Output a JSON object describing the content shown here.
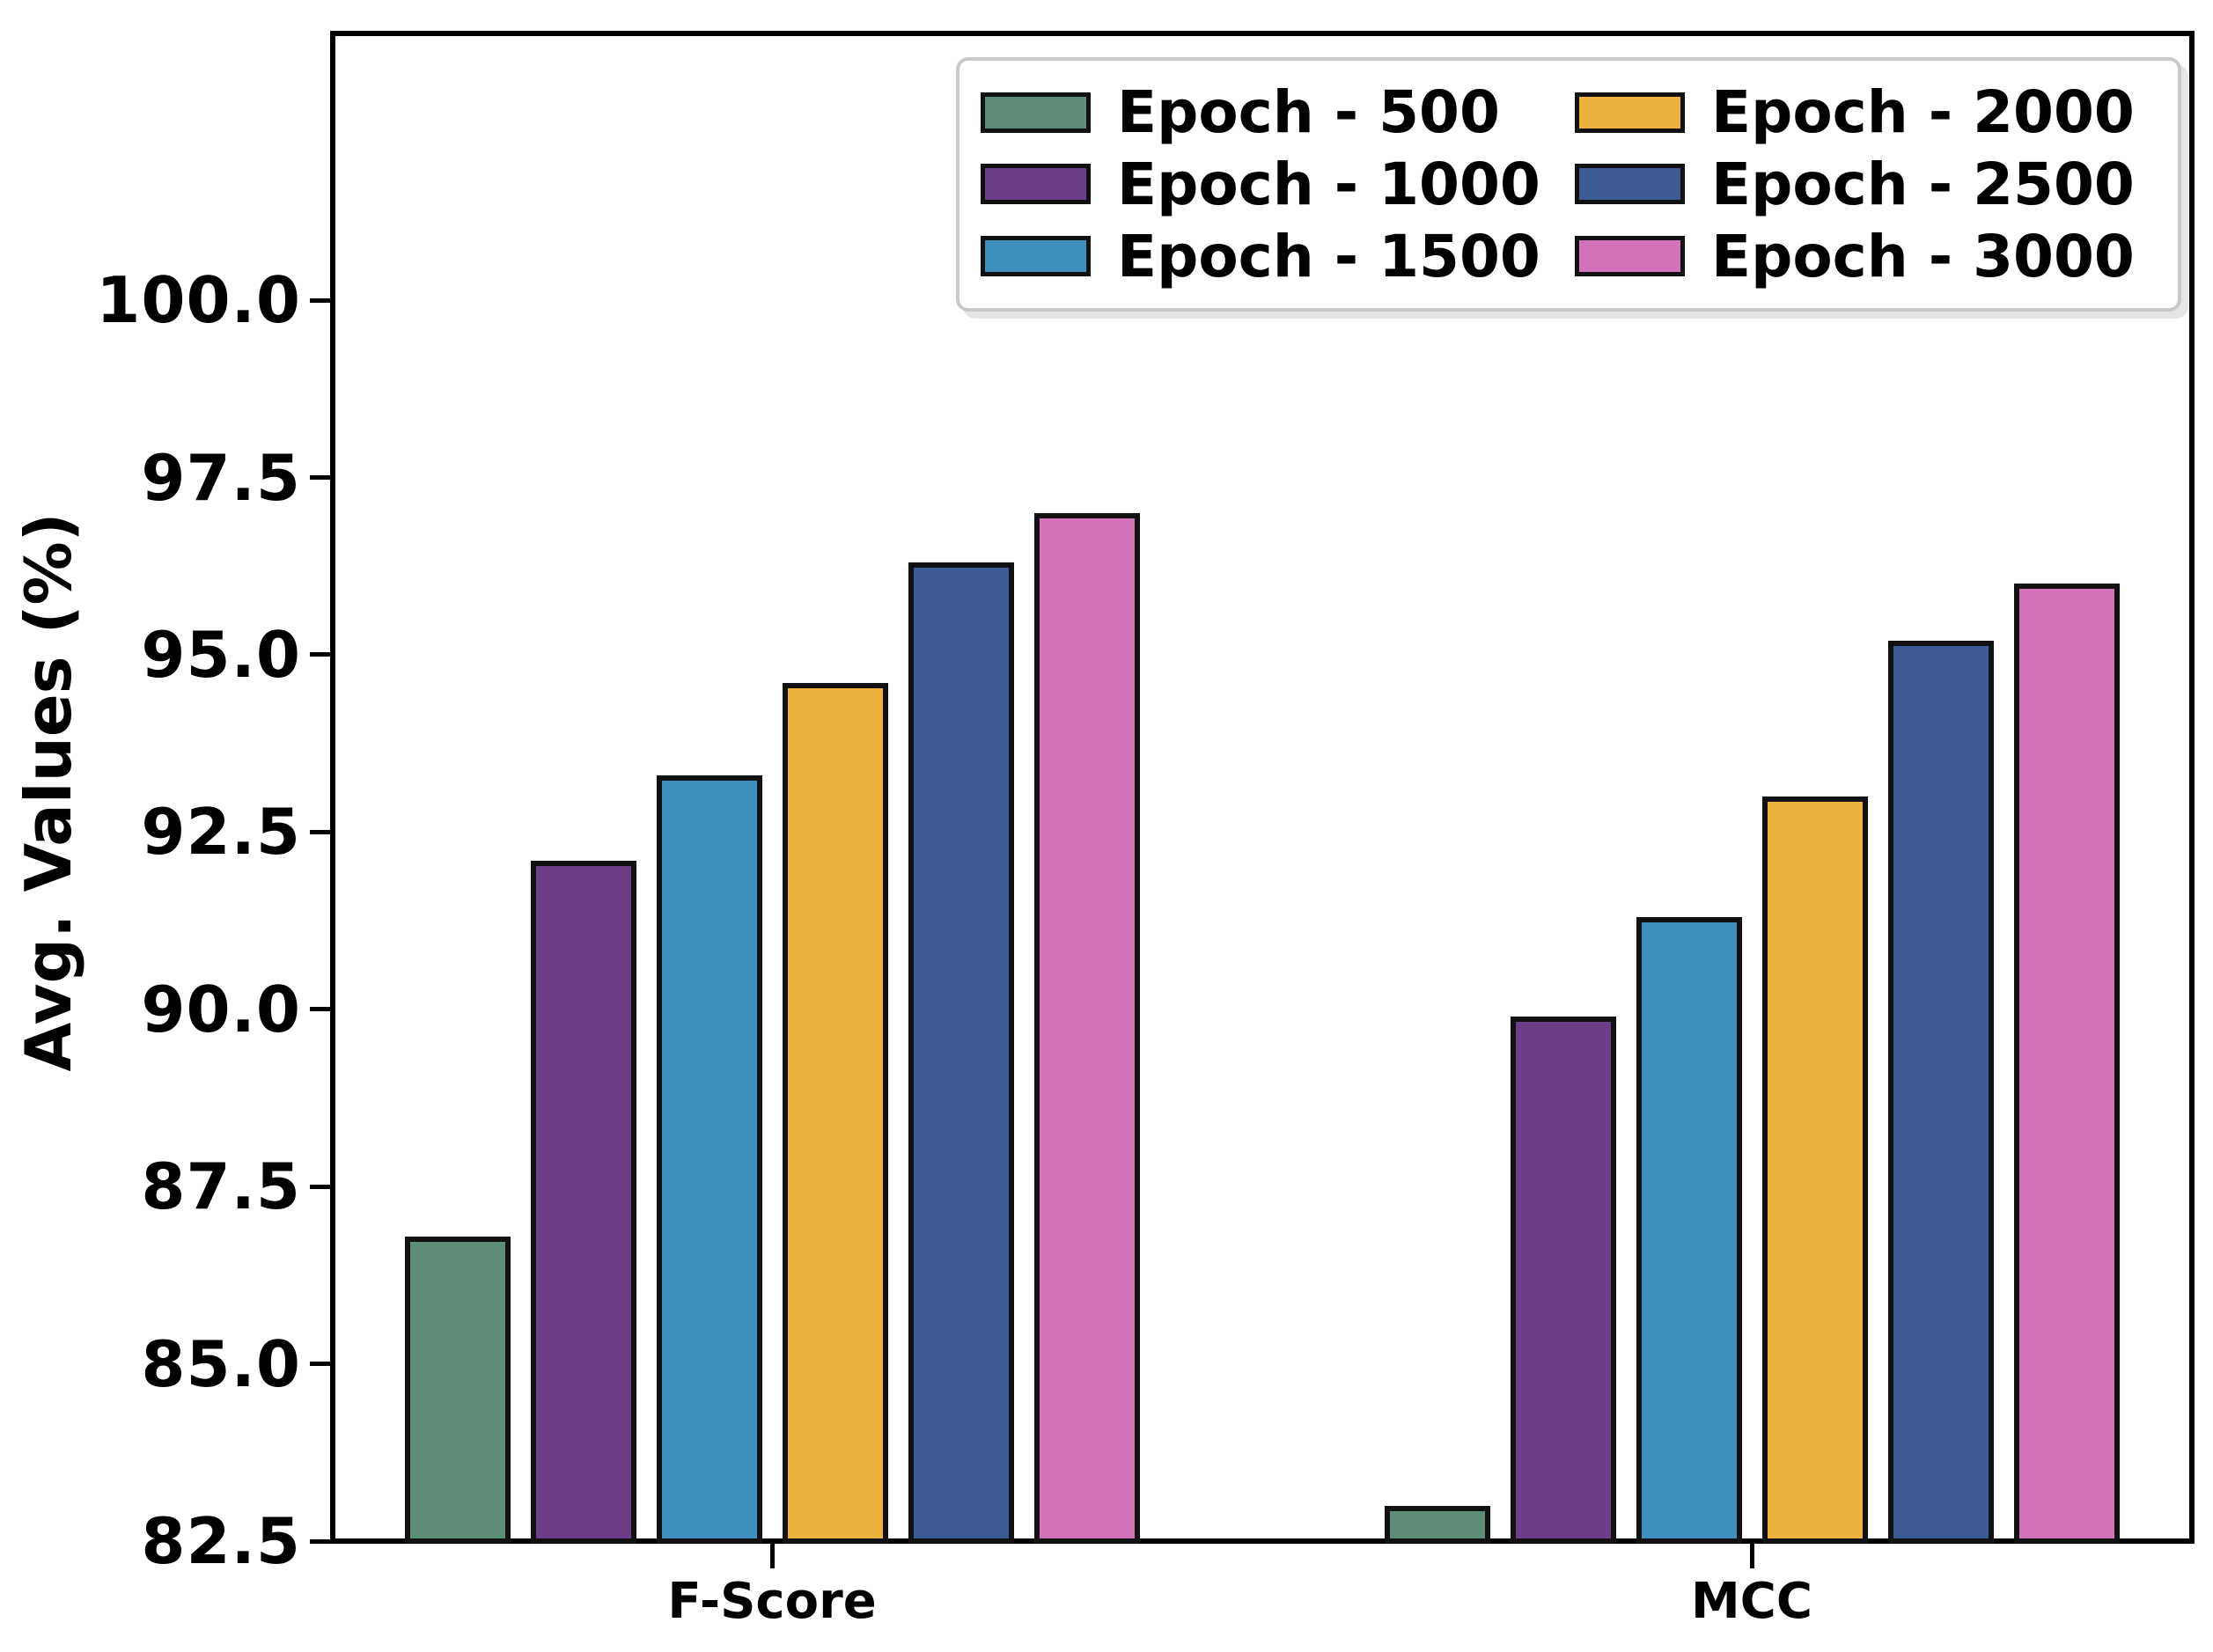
{
  "colors": {
    "background": "#ffffff",
    "axis": "#000000",
    "bar_edge": "#111111",
    "legend_border": "#c9c9c9"
  },
  "chart_data": {
    "type": "bar",
    "title": "",
    "xlabel": "",
    "ylabel": "Avg. Values (%)",
    "categories": [
      "F-Score",
      "MCC"
    ],
    "series": [
      {
        "name": "Epoch - 500",
        "color": "#5E8D77",
        "values": [
          86.8,
          83.0
        ]
      },
      {
        "name": "Epoch - 1000",
        "color": "#6D3D89",
        "values": [
          92.1,
          89.9
        ]
      },
      {
        "name": "Epoch - 1500",
        "color": "#3E8EBE",
        "values": [
          93.3,
          91.3
        ]
      },
      {
        "name": "Epoch - 2000",
        "color": "#ECB23B",
        "values": [
          94.6,
          93.0
        ]
      },
      {
        "name": "Epoch - 2500",
        "color": "#3C5B92",
        "values": [
          96.3,
          95.2
        ]
      },
      {
        "name": "Epoch - 3000",
        "color": "#D372B8",
        "values": [
          97.0,
          96.0
        ]
      }
    ],
    "y_ticks": [
      {
        "value": 82.5,
        "label": "82.5"
      },
      {
        "value": 85.0,
        "label": "85.0"
      },
      {
        "value": 87.5,
        "label": "87.5"
      },
      {
        "value": 90.0,
        "label": "90.0"
      },
      {
        "value": 92.5,
        "label": "92.5"
      },
      {
        "value": 95.0,
        "label": "95.0"
      },
      {
        "value": 97.5,
        "label": "97.5"
      },
      {
        "value": 100.0,
        "label": "100.0"
      }
    ],
    "ylim": [
      82.5,
      103.8
    ],
    "grid": false,
    "legend_position": "upper right",
    "legend_columns": 2
  }
}
